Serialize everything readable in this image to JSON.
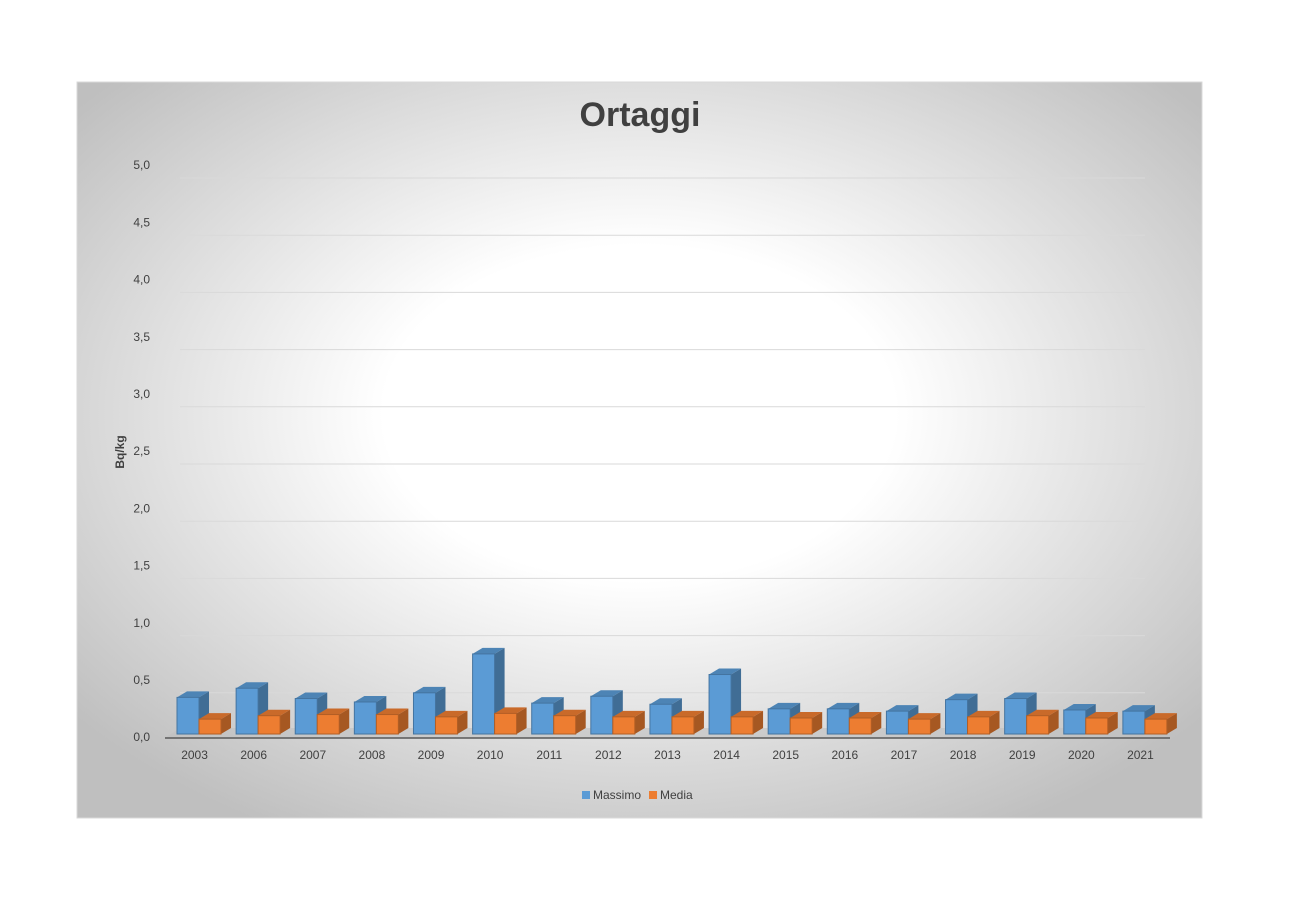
{
  "chart_data": {
    "type": "bar3d",
    "title": "Ortaggi",
    "y_label": "Bq/kg",
    "categories": [
      "2003",
      "2006",
      "2007",
      "2008",
      "2009",
      "2010",
      "2011",
      "2012",
      "2013",
      "2014",
      "2015",
      "2016",
      "2017",
      "2018",
      "2019",
      "2020",
      "2021"
    ],
    "series": [
      {
        "name": "Massimo",
        "color": "#5b9bd5",
        "values": [
          0.32,
          0.4,
          0.31,
          0.28,
          0.36,
          0.7,
          0.27,
          0.33,
          0.26,
          0.52,
          0.22,
          0.22,
          0.2,
          0.3,
          0.31,
          0.21,
          0.2
        ]
      },
      {
        "name": "Media",
        "color": "#ed7d31",
        "values": [
          0.13,
          0.16,
          0.17,
          0.17,
          0.15,
          0.18,
          0.16,
          0.15,
          0.15,
          0.15,
          0.14,
          0.14,
          0.13,
          0.15,
          0.16,
          0.14,
          0.13
        ]
      }
    ],
    "ylim": [
      0,
      5
    ],
    "yticks": [
      {
        "value": 0,
        "label": "0,0"
      },
      {
        "value": 0.5,
        "label": "0,5"
      },
      {
        "value": 1,
        "label": "1,0"
      },
      {
        "value": 1.5,
        "label": "1,5"
      },
      {
        "value": 2,
        "label": "2,0"
      },
      {
        "value": 2.5,
        "label": "2,5"
      },
      {
        "value": 3,
        "label": "3,0"
      },
      {
        "value": 3.5,
        "label": "3,5"
      },
      {
        "value": 4,
        "label": "4,0"
      },
      {
        "value": 4.5,
        "label": "4,5"
      },
      {
        "value": 5,
        "label": "5,0"
      }
    ],
    "grid": true
  }
}
